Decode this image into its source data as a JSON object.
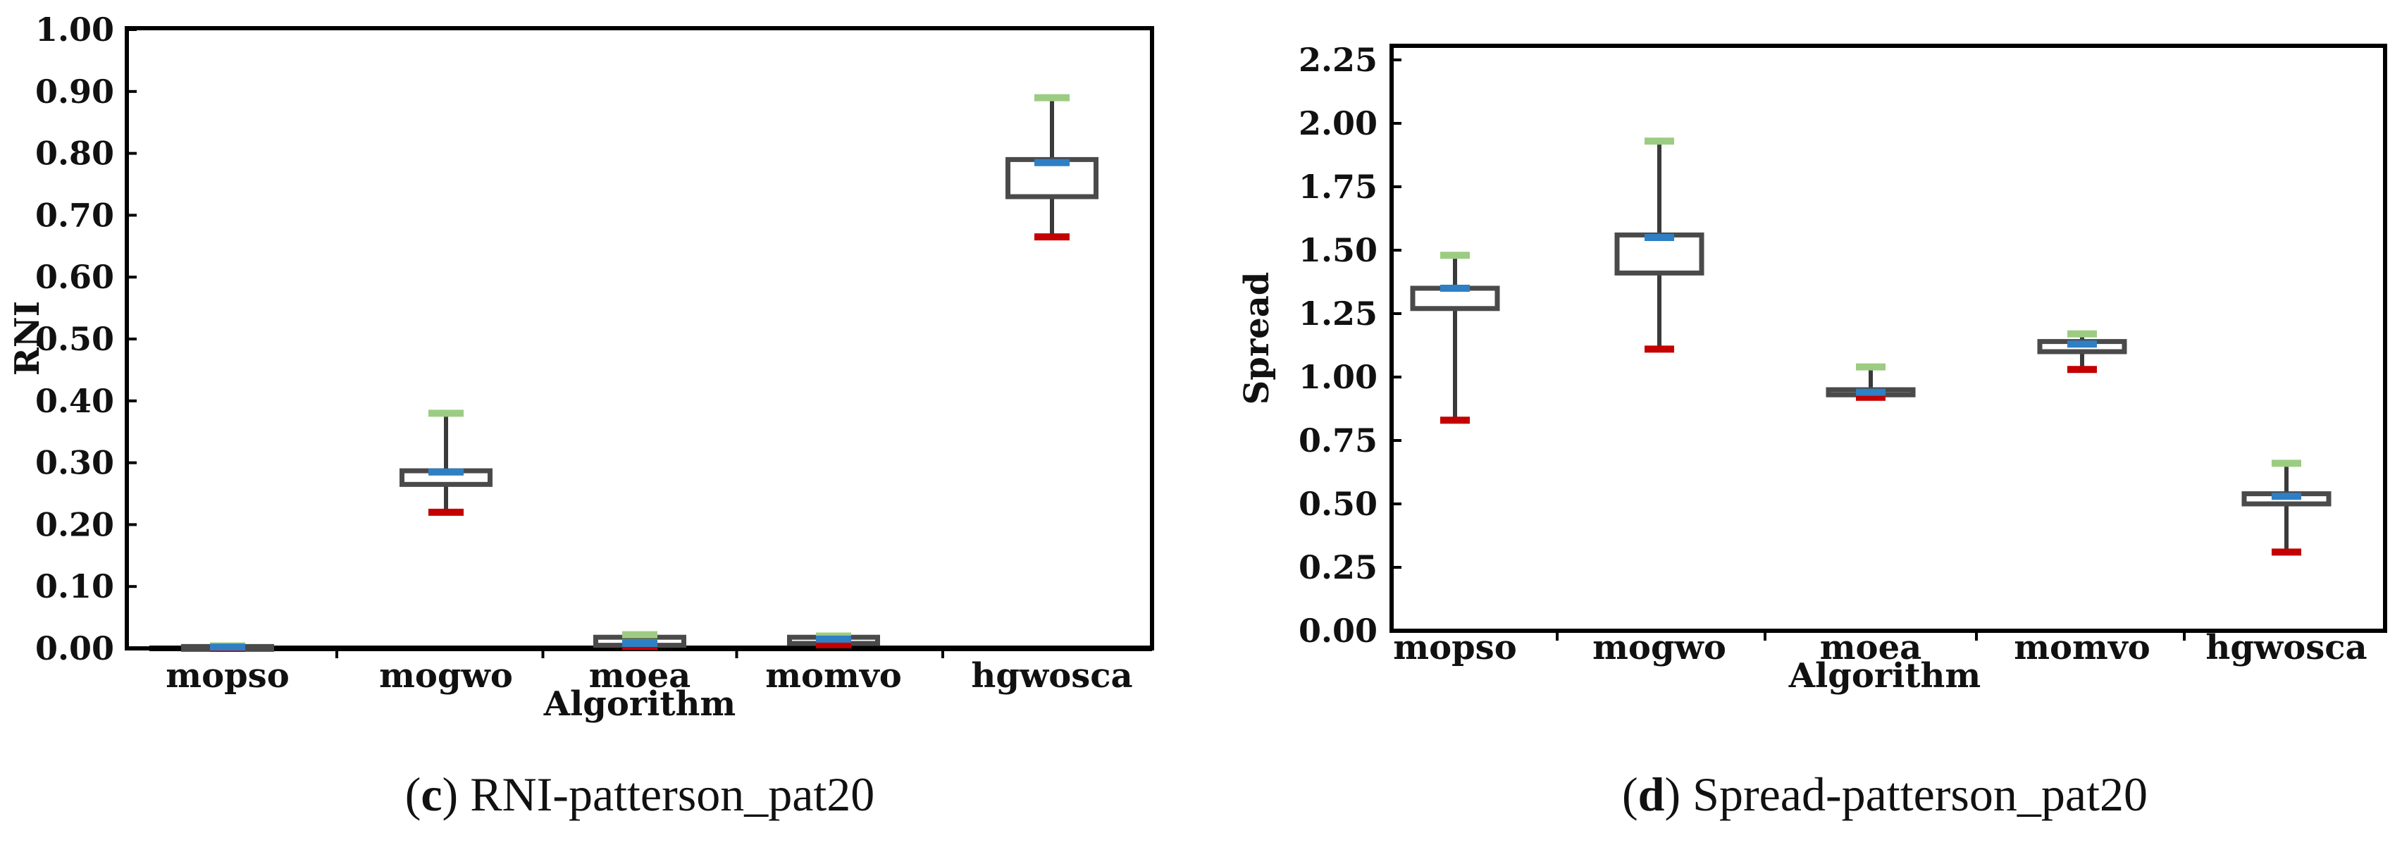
{
  "colors": {
    "box": "#4a4a4a",
    "whisker": "#3a3a3a",
    "max_marker": "#9ccc82",
    "median_marker": "#2f7fc4",
    "min_marker": "#c40000",
    "axis": "#000000"
  },
  "chart_data": [
    {
      "type": "box",
      "title": "",
      "xlabel": "Algorithm",
      "ylabel": "RNI",
      "ylim": [
        0,
        1.0
      ],
      "yticks": [
        0.0,
        0.1,
        0.2,
        0.3,
        0.4,
        0.5,
        0.6,
        0.7,
        0.8,
        0.9,
        1.0
      ],
      "ytick_labels": [
        "0.00",
        "0.10",
        "0.20",
        "0.30",
        "0.40",
        "0.50",
        "0.60",
        "0.70",
        "0.80",
        "0.90",
        "1.00"
      ],
      "categories": [
        "mopso",
        "mogwo",
        "moea",
        "momvo",
        "hgwosca"
      ],
      "series": [
        {
          "name": "mopso",
          "min": 0.0,
          "q1": 0.0,
          "median": 0.002,
          "q3": 0.003,
          "max": 0.004
        },
        {
          "name": "mogwo",
          "min": 0.22,
          "q1": 0.265,
          "median": 0.285,
          "q3": 0.287,
          "max": 0.38
        },
        {
          "name": "moea",
          "min": 0.003,
          "q1": 0.005,
          "median": 0.008,
          "q3": 0.018,
          "max": 0.022
        },
        {
          "name": "momvo",
          "min": 0.006,
          "q1": 0.008,
          "median": 0.015,
          "q3": 0.018,
          "max": 0.02
        },
        {
          "name": "hgwosca",
          "min": 0.665,
          "q1": 0.73,
          "median": 0.785,
          "q3": 0.79,
          "max": 0.89
        }
      ],
      "caption_letter": "c",
      "caption_text": "RNI-patterson_pat20"
    },
    {
      "type": "box",
      "title": "",
      "xlabel": "Algorithm",
      "ylabel": "Spread",
      "ylim": [
        0,
        2.25
      ],
      "yticks": [
        0.0,
        0.25,
        0.5,
        0.75,
        1.0,
        1.25,
        1.5,
        1.75,
        2.0,
        2.25
      ],
      "ytick_labels": [
        "0.00",
        "0.25",
        "0.50",
        "0.75",
        "1.00",
        "1.25",
        "1.50",
        "1.75",
        "2.00",
        "2.25"
      ],
      "categories": [
        "mopso",
        "mogwo",
        "moea",
        "momvo",
        "hgwosca"
      ],
      "series": [
        {
          "name": "mopso",
          "min": 0.83,
          "q1": 1.27,
          "median": 1.35,
          "q3": 1.35,
          "max": 1.48
        },
        {
          "name": "mogwo",
          "min": 1.11,
          "q1": 1.41,
          "median": 1.55,
          "q3": 1.56,
          "max": 1.93
        },
        {
          "name": "moea",
          "min": 0.92,
          "q1": 0.93,
          "median": 0.94,
          "q3": 0.95,
          "max": 1.04
        },
        {
          "name": "momvo",
          "min": 1.03,
          "q1": 1.1,
          "median": 1.13,
          "q3": 1.14,
          "max": 1.17
        },
        {
          "name": "hgwosca",
          "min": 0.31,
          "q1": 0.5,
          "median": 0.53,
          "q3": 0.54,
          "max": 0.66
        }
      ],
      "caption_letter": "d",
      "caption_text": "Spread-patterson_pat20"
    }
  ]
}
